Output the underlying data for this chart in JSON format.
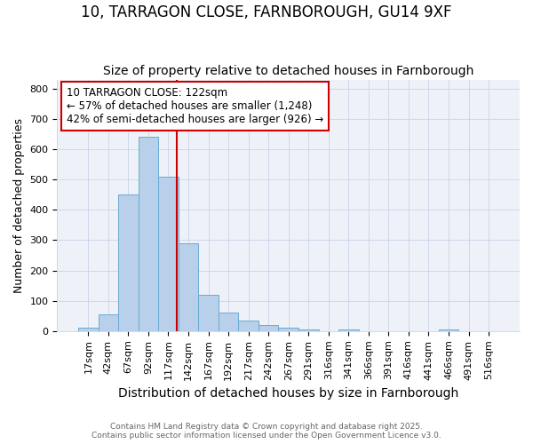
{
  "title": "10, TARRAGON CLOSE, FARNBOROUGH, GU14 9XF",
  "subtitle": "Size of property relative to detached houses in Farnborough",
  "xlabel": "Distribution of detached houses by size in Farnborough",
  "ylabel": "Number of detached properties",
  "bar_labels": [
    "17sqm",
    "42sqm",
    "67sqm",
    "92sqm",
    "117sqm",
    "142sqm",
    "167sqm",
    "192sqm",
    "217sqm",
    "242sqm",
    "267sqm",
    "291sqm",
    "316sqm",
    "341sqm",
    "366sqm",
    "391sqm",
    "416sqm",
    "441sqm",
    "466sqm",
    "491sqm",
    "516sqm"
  ],
  "bar_values": [
    10,
    55,
    450,
    640,
    510,
    290,
    120,
    60,
    35,
    20,
    10,
    5,
    0,
    5,
    0,
    0,
    0,
    0,
    5,
    0,
    0
  ],
  "bar_color": "#b8d0ea",
  "bar_edge_color": "#6aaad4",
  "vline_x_idx": 4,
  "vline_x_offset": 0.42,
  "vline_color": "#cc0000",
  "annotation_text": "10 TARRAGON CLOSE: 122sqm\n← 57% of detached houses are smaller (1,248)\n42% of semi-detached houses are larger (926) →",
  "annotation_box_color": "#ffffff",
  "annotation_box_edge": "#cc0000",
  "ylim": [
    0,
    830
  ],
  "yticks": [
    0,
    100,
    200,
    300,
    400,
    500,
    600,
    700,
    800
  ],
  "footnote": "Contains HM Land Registry data © Crown copyright and database right 2025.\nContains public sector information licensed under the Open Government Licence v3.0.",
  "bg_color": "#ffffff",
  "plot_bg_color": "#eef2f8",
  "title_fontsize": 12,
  "subtitle_fontsize": 10,
  "annotation_fontsize": 8.5,
  "tick_fontsize": 8,
  "ylabel_fontsize": 9,
  "xlabel_fontsize": 10
}
